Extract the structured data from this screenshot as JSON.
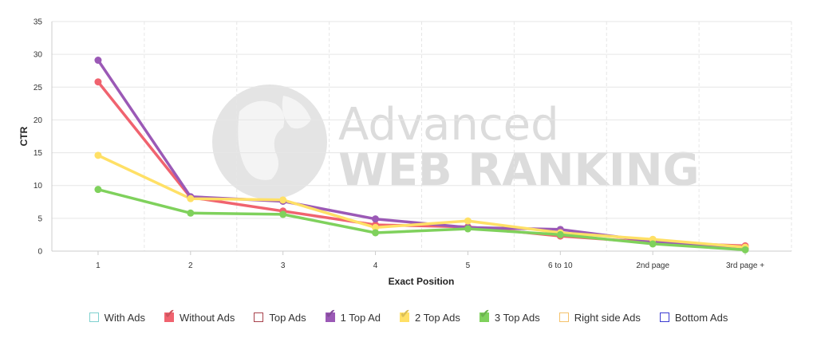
{
  "chart_data": {
    "type": "line",
    "xlabel": "Exact Position",
    "ylabel": "CTR",
    "categories": [
      "1",
      "2",
      "3",
      "4",
      "5",
      "6 to 10",
      "2nd page",
      "3rd page +"
    ],
    "ylim": [
      0,
      35
    ],
    "yticks": [
      0,
      5,
      10,
      15,
      20,
      25,
      30,
      35
    ],
    "grid": true,
    "legend_position": "bottom",
    "watermark": [
      "Advanced",
      "WEB RANKING"
    ],
    "series": [
      {
        "name": "Without Ads",
        "color": "#f0636f",
        "values": [
          25.8,
          8.2,
          6.1,
          4.0,
          3.7,
          2.3,
          1.3,
          0.8
        ]
      },
      {
        "name": "1 Top Ad",
        "color": "#9b59b6",
        "values": [
          29.1,
          8.3,
          7.6,
          4.9,
          3.6,
          3.3,
          1.5,
          0.4
        ]
      },
      {
        "name": "2 Top Ads",
        "color": "#ffe066",
        "values": [
          14.6,
          8.0,
          7.8,
          3.6,
          4.6,
          2.8,
          1.8,
          0.6
        ]
      },
      {
        "name": "3 Top Ads",
        "color": "#7fd15c",
        "values": [
          9.4,
          5.8,
          5.6,
          2.8,
          3.4,
          2.5,
          1.1,
          0.2
        ]
      }
    ]
  },
  "legend": {
    "items": [
      {
        "label": "With Ads",
        "color": "#7fd1cf",
        "checked": false
      },
      {
        "label": "Without Ads",
        "color": "#f0636f",
        "checked": true
      },
      {
        "label": "Top Ads",
        "color": "#a8424c",
        "checked": false
      },
      {
        "label": "1 Top Ad",
        "color": "#9b59b6",
        "checked": true
      },
      {
        "label": "2 Top Ads",
        "color": "#ffe066",
        "checked": true
      },
      {
        "label": "3 Top Ads",
        "color": "#7fd15c",
        "checked": true
      },
      {
        "label": "Right side Ads",
        "color": "#f5c26b",
        "checked": false
      },
      {
        "label": "Bottom Ads",
        "color": "#3b3bd1",
        "checked": false
      }
    ]
  }
}
